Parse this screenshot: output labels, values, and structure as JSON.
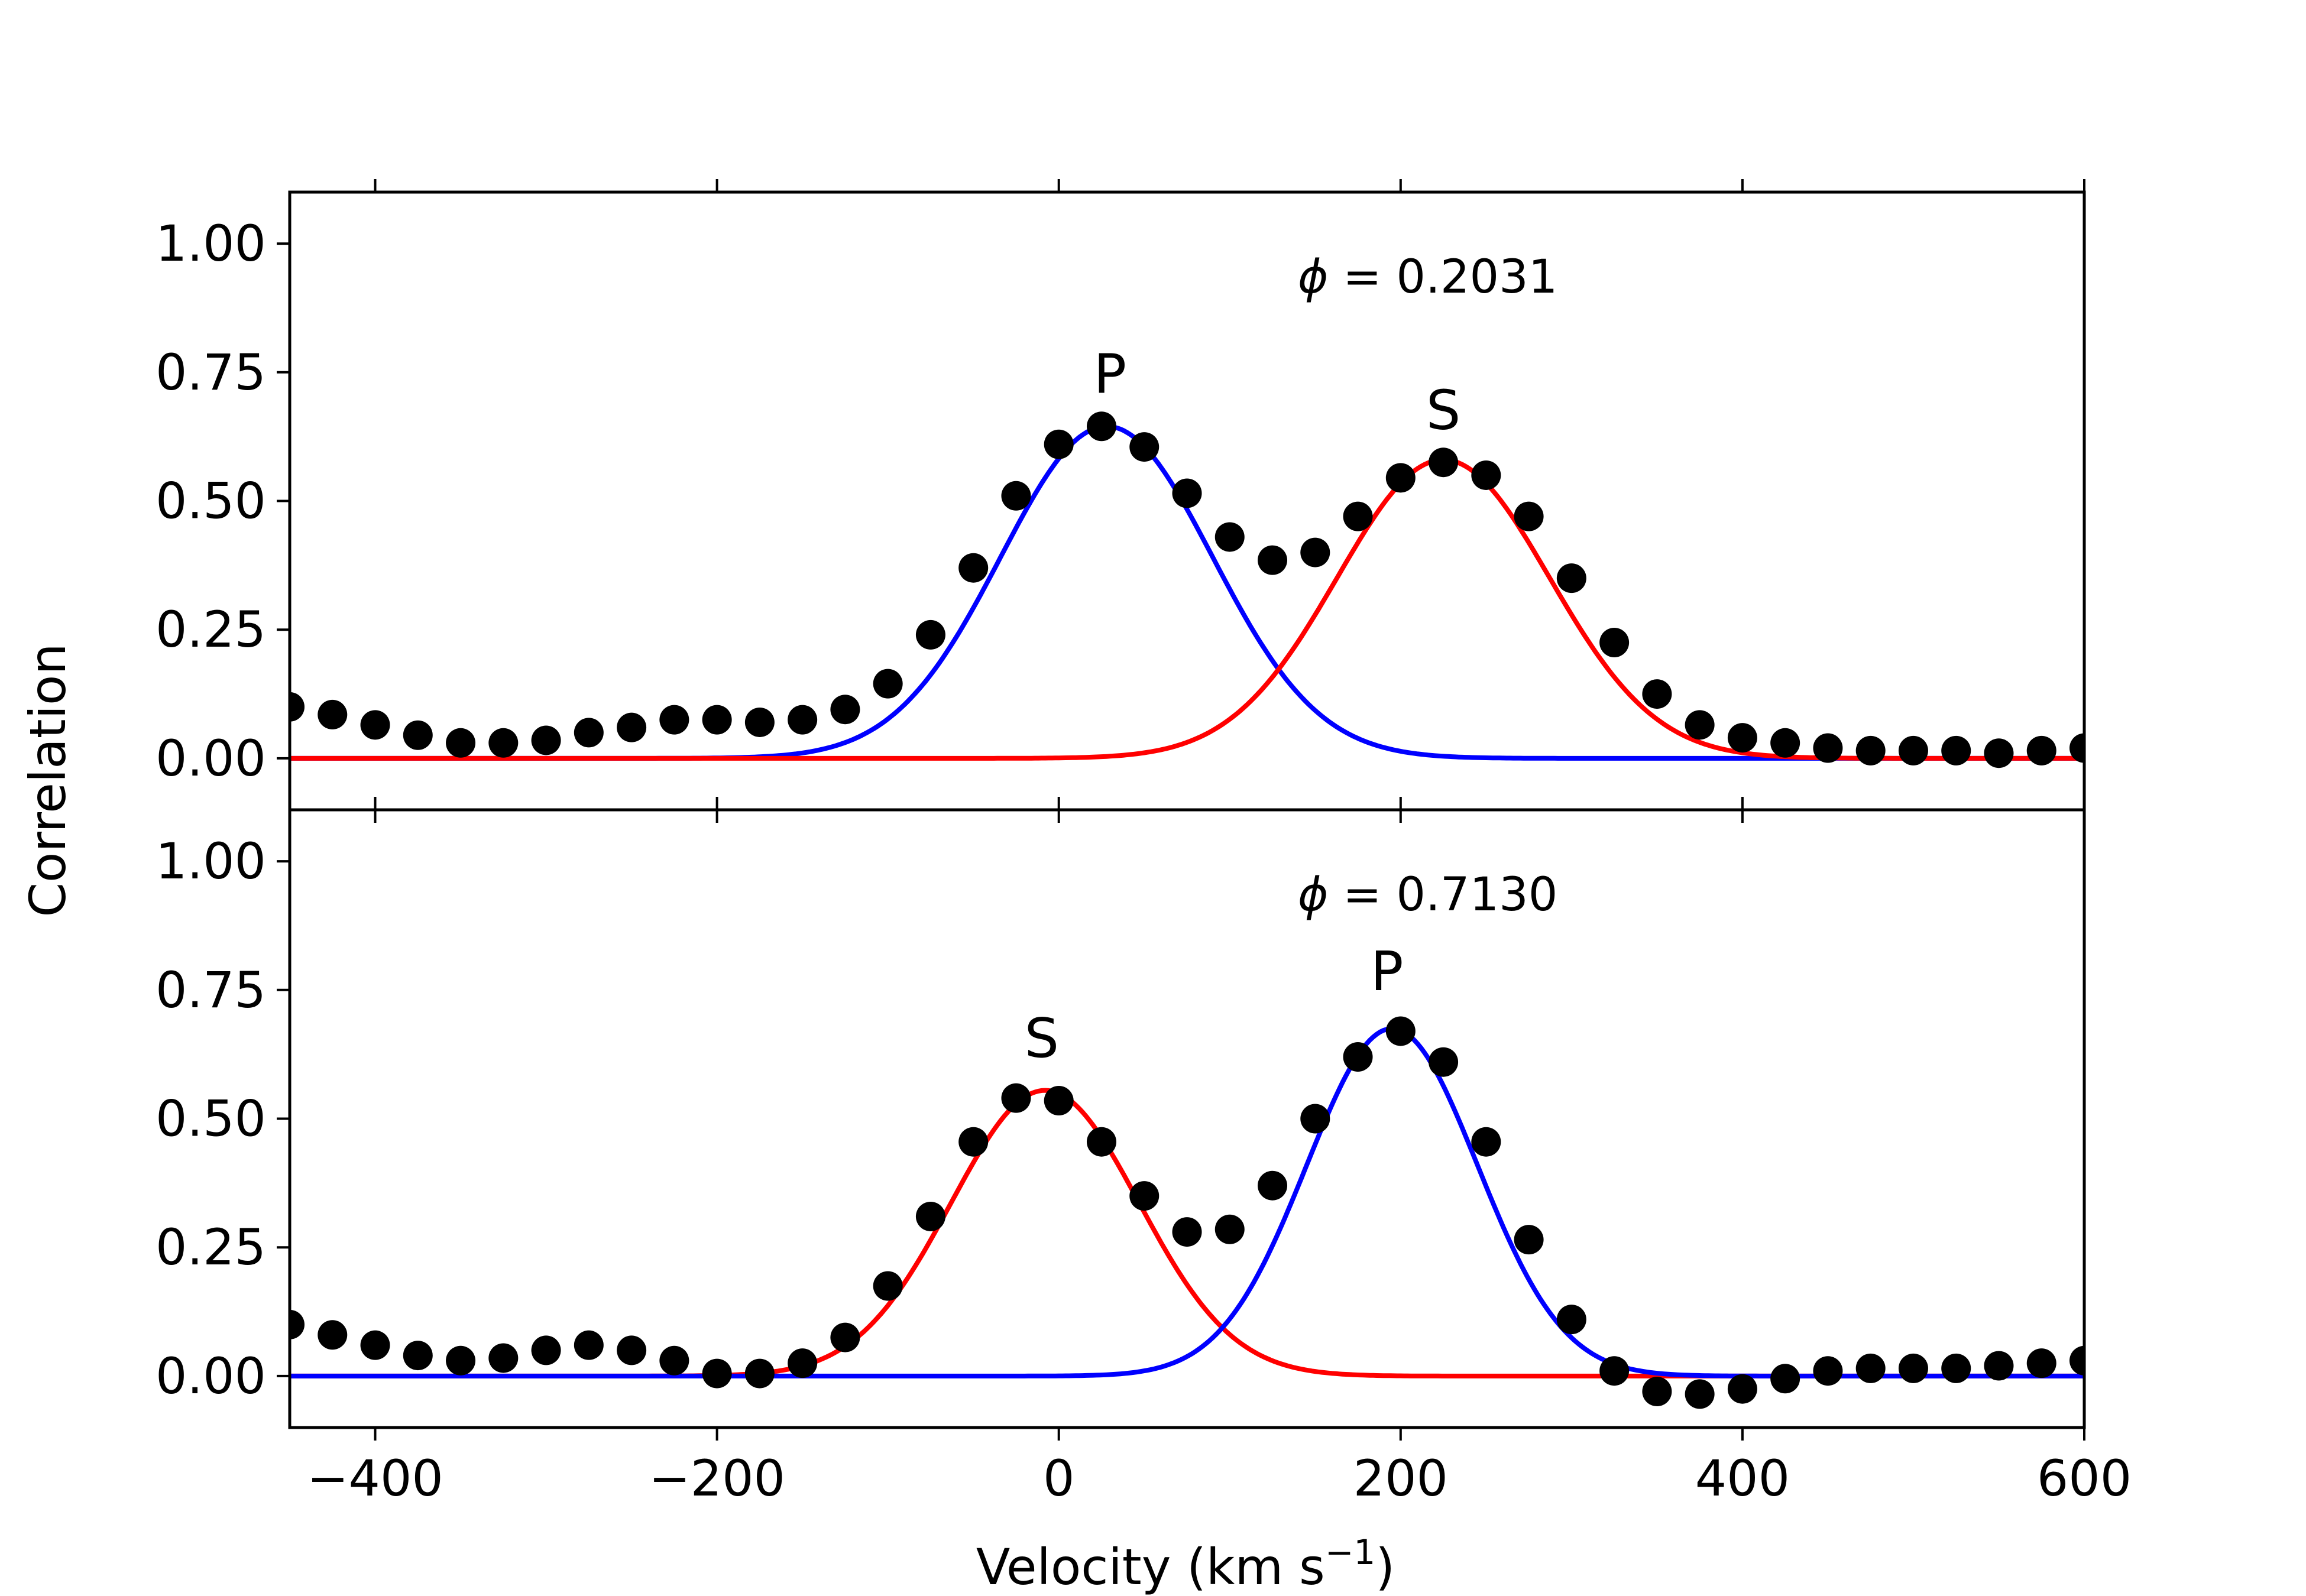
{
  "chart_data": {
    "type": "scatter",
    "xlabel": "Velocity (km s",
    "xlabel_sup": "−1",
    "xlabel_close": ")",
    "ylabel": "Correlation",
    "xlim": [
      -450,
      600
    ],
    "ylim": [
      -0.1,
      1.1
    ],
    "xticks": [
      -400,
      -200,
      0,
      200,
      400,
      600
    ],
    "xtick_labels": [
      "−400",
      "−200",
      "0",
      "200",
      "400",
      "600"
    ],
    "yticks": [
      0,
      0.25,
      0.5,
      0.75,
      1.0
    ],
    "ytick_labels": [
      "0.00",
      "0.25",
      "0.50",
      "0.75",
      "1.00"
    ],
    "colors": {
      "points": "#000000",
      "primary": "#0000ff",
      "secondary": "#ff0000",
      "axes": "#000000"
    },
    "panels": [
      {
        "phase_symbol": "ϕ",
        "phase_text": " = 0.2031",
        "peak_labels": [
          {
            "text": "P",
            "x": 30,
            "y": 0.71
          },
          {
            "text": "S",
            "x": 225,
            "y": 0.64
          }
        ],
        "fits": [
          {
            "name": "P",
            "color": "primary",
            "amp": 0.645,
            "center": 28,
            "sigma": 62
          },
          {
            "name": "S",
            "color": "secondary",
            "amp": 0.58,
            "center": 225,
            "sigma": 62
          }
        ],
        "x": [
          -450,
          -425,
          -400,
          -375,
          -350,
          -325,
          -300,
          -275,
          -250,
          -225,
          -200,
          -175,
          -150,
          -125,
          -100,
          -75,
          -50,
          -25,
          0,
          25,
          50,
          75,
          100,
          125,
          150,
          175,
          200,
          225,
          250,
          275,
          300,
          325,
          350,
          375,
          400,
          425,
          450,
          475,
          500,
          525,
          550,
          575,
          600
        ],
        "y": [
          0.1,
          0.085,
          0.065,
          0.045,
          0.03,
          0.03,
          0.035,
          0.05,
          0.06,
          0.075,
          0.075,
          0.07,
          0.075,
          0.095,
          0.145,
          0.24,
          0.37,
          0.51,
          0.61,
          0.645,
          0.605,
          0.515,
          0.43,
          0.385,
          0.4,
          0.47,
          0.545,
          0.575,
          0.55,
          0.47,
          0.35,
          0.225,
          0.125,
          0.065,
          0.04,
          0.03,
          0.02,
          0.015,
          0.015,
          0.015,
          0.01,
          0.015,
          0.02
        ]
      },
      {
        "phase_symbol": "ϕ",
        "phase_text": " = 0.7130",
        "peak_labels": [
          {
            "text": "S",
            "x": -10,
            "y": 0.62
          },
          {
            "text": "P",
            "x": 192,
            "y": 0.75
          }
        ],
        "fits": [
          {
            "name": "S",
            "color": "secondary",
            "amp": 0.555,
            "center": -8,
            "sigma": 55
          },
          {
            "name": "P",
            "color": "primary",
            "amp": 0.675,
            "center": 195,
            "sigma": 50
          }
        ],
        "x": [
          -450,
          -425,
          -400,
          -375,
          -350,
          -325,
          -300,
          -275,
          -250,
          -225,
          -200,
          -175,
          -150,
          -125,
          -100,
          -75,
          -50,
          -25,
          0,
          25,
          50,
          75,
          100,
          125,
          150,
          175,
          200,
          225,
          250,
          275,
          300,
          325,
          350,
          375,
          400,
          425,
          450,
          475,
          500,
          525,
          550,
          575,
          600
        ],
        "y": [
          0.1,
          0.08,
          0.06,
          0.04,
          0.03,
          0.035,
          0.05,
          0.06,
          0.05,
          0.03,
          0.005,
          0.005,
          0.025,
          0.075,
          0.175,
          0.31,
          0.455,
          0.54,
          0.535,
          0.455,
          0.35,
          0.28,
          0.285,
          0.37,
          0.5,
          0.62,
          0.67,
          0.61,
          0.455,
          0.265,
          0.11,
          0.01,
          -0.03,
          -0.035,
          -0.025,
          -0.005,
          0.01,
          0.015,
          0.015,
          0.015,
          0.02,
          0.025,
          0.03
        ]
      }
    ]
  }
}
